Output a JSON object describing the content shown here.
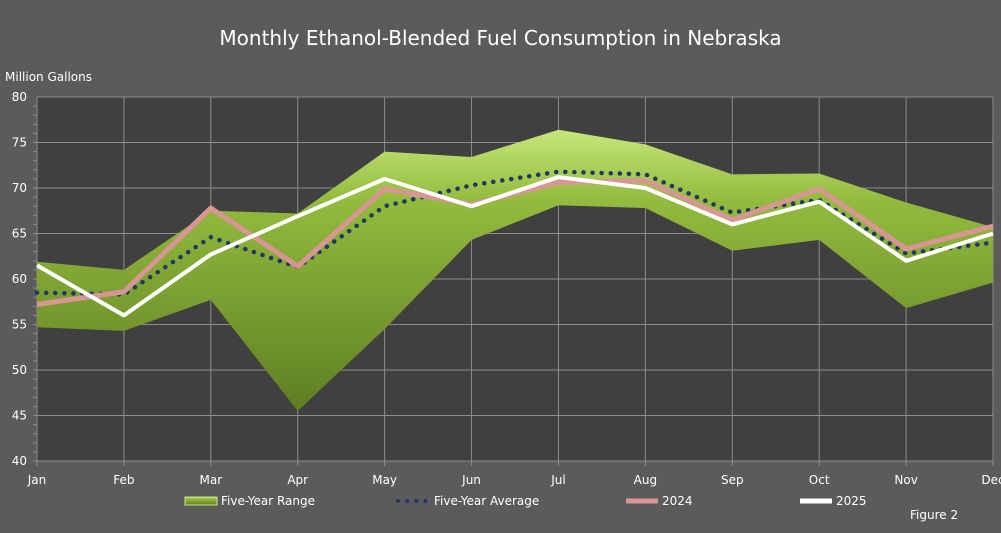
{
  "chart_data": {
    "type": "line",
    "title": "Monthly Ethanol-Blended Fuel Consumption in Nebraska",
    "ylabel": "Million Gallons",
    "xlabel": "",
    "categories": [
      "Jan",
      "Feb",
      "Mar",
      "Apr",
      "May",
      "Jun",
      "Jul",
      "Aug",
      "Sep",
      "Oct",
      "Nov",
      "Dec"
    ],
    "ylim": [
      40,
      80
    ],
    "yticks": [
      40,
      45,
      50,
      55,
      60,
      65,
      70,
      75,
      80
    ],
    "grid": true,
    "legend": "bottom",
    "range": {
      "name": "Five-Year Range",
      "upper": [
        61.9,
        61.0,
        67.5,
        67.2,
        74.0,
        73.4,
        76.4,
        74.8,
        71.5,
        71.6,
        68.4,
        65.7
      ],
      "lower": [
        54.7,
        54.3,
        57.7,
        45.5,
        54.5,
        64.3,
        68.1,
        67.8,
        63.1,
        64.3,
        56.8,
        59.6
      ],
      "color": "#8db43a"
    },
    "series": [
      {
        "name": "Five-Year Average",
        "values": [
          58.5,
          58.3,
          64.6,
          61.3,
          68.0,
          70.3,
          71.8,
          71.5,
          67.3,
          68.7,
          62.8,
          64.0
        ],
        "color": "#1f3864",
        "style": "dotted"
      },
      {
        "name": "2024",
        "values": [
          57.2,
          58.6,
          67.8,
          61.4,
          69.9,
          68.2,
          70.6,
          70.8,
          66.5,
          69.9,
          63.3,
          65.8
        ],
        "color": "#d99594",
        "style": "solid"
      },
      {
        "name": "2025",
        "values": [
          61.5,
          56.0,
          62.7,
          66.9,
          71.0,
          68.0,
          71.2,
          70.0,
          66.0,
          68.5,
          62.0,
          65.0
        ],
        "color": "#ffffff",
        "style": "solid"
      }
    ]
  },
  "footer": {
    "figure_label": "Figure 2"
  }
}
